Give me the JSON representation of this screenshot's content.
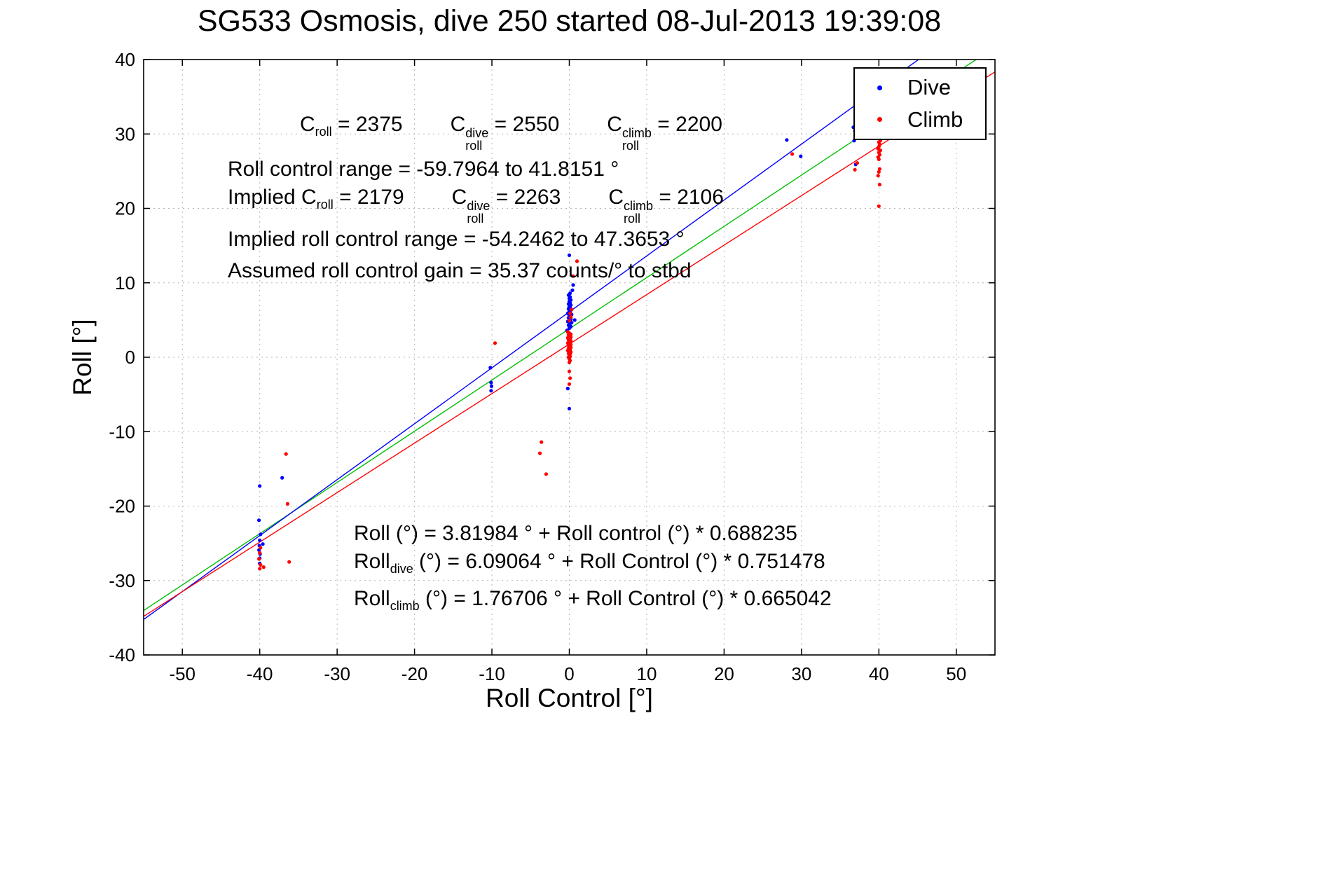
{
  "chart_data": {
    "type": "scatter",
    "title": "SG533 Osmosis, dive 250 started 08-Jul-2013 19:39:08",
    "xlabel": "Roll Control [°]",
    "ylabel": "Roll [°]",
    "xlim": [
      -55,
      55
    ],
    "ylim": [
      -40,
      40
    ],
    "xticks": [
      -50,
      -40,
      -30,
      -20,
      -10,
      0,
      10,
      20,
      30,
      40,
      50
    ],
    "yticks": [
      -40,
      -30,
      -20,
      -10,
      0,
      10,
      20,
      30,
      40
    ],
    "grid": true,
    "legend_position": "top-right",
    "series": [
      {
        "name": "Dive",
        "color": "#0000ff",
        "marker": "dot",
        "points": [
          [
            -40.0,
            -17.3
          ],
          [
            -40.1,
            -21.9
          ],
          [
            -39.9,
            -23.8
          ],
          [
            -40.0,
            -24.6
          ],
          [
            -40.05,
            -25.3
          ],
          [
            -40.1,
            -25.9
          ],
          [
            -39.95,
            -26.45
          ],
          [
            -40.0,
            -27.0
          ],
          [
            -40.0,
            -27.7
          ],
          [
            -39.6,
            -25.1
          ],
          [
            -37.1,
            -16.2
          ],
          [
            -10.2,
            -1.4
          ],
          [
            -10.1,
            -3.4
          ],
          [
            -10.05,
            -3.9
          ],
          [
            -10.1,
            -4.5
          ],
          [
            -0.3,
            3.6
          ],
          [
            0.0,
            3.9
          ],
          [
            0.2,
            4.1
          ],
          [
            -0.1,
            4.3
          ],
          [
            0.1,
            4.5
          ],
          [
            0.3,
            4.65
          ],
          [
            -0.2,
            4.8
          ],
          [
            0.0,
            5.0
          ],
          [
            0.2,
            5.1
          ],
          [
            -0.1,
            5.3
          ],
          [
            0.1,
            5.45
          ],
          [
            0.0,
            5.6
          ],
          [
            0.3,
            5.75
          ],
          [
            -0.2,
            5.9
          ],
          [
            0.1,
            6.05
          ],
          [
            0.0,
            6.2
          ],
          [
            0.2,
            6.35
          ],
          [
            -0.1,
            6.5
          ],
          [
            0.1,
            6.65
          ],
          [
            0.0,
            6.8
          ],
          [
            0.2,
            7.0
          ],
          [
            -0.1,
            7.15
          ],
          [
            0.1,
            7.3
          ],
          [
            0.0,
            7.5
          ],
          [
            0.2,
            7.7
          ],
          [
            0.0,
            7.9
          ],
          [
            0.1,
            8.1
          ],
          [
            -0.1,
            8.35
          ],
          [
            0.1,
            8.6
          ],
          [
            0.4,
            9.0
          ],
          [
            0.5,
            9.7
          ],
          [
            0.7,
            5.0
          ],
          [
            0.0,
            13.7
          ],
          [
            -0.2,
            -4.2
          ],
          [
            0.0,
            -6.9
          ],
          [
            28.1,
            29.2
          ],
          [
            29.9,
            27.0
          ],
          [
            36.7,
            30.9
          ],
          [
            36.9,
            30.4
          ],
          [
            37.0,
            29.9
          ],
          [
            37.1,
            29.5
          ],
          [
            36.8,
            29.1
          ],
          [
            37.2,
            30.6
          ],
          [
            37.0,
            25.9
          ]
        ]
      },
      {
        "name": "Climb",
        "color": "#ff0000",
        "marker": "dot",
        "points": [
          [
            -39.9,
            -25.6
          ],
          [
            -40.0,
            -26.3
          ],
          [
            -40.1,
            -27.1
          ],
          [
            -39.9,
            -27.9
          ],
          [
            -40.0,
            -28.4
          ],
          [
            -39.5,
            -28.2
          ],
          [
            -36.6,
            -13.0
          ],
          [
            -36.4,
            -19.7
          ],
          [
            -36.2,
            -27.5
          ],
          [
            -9.6,
            1.9
          ],
          [
            -3.8,
            -12.9
          ],
          [
            -3.0,
            -15.7
          ],
          [
            -3.6,
            -11.4
          ],
          [
            -0.2,
            3.4
          ],
          [
            0.0,
            3.25
          ],
          [
            0.2,
            3.1
          ],
          [
            -0.1,
            3.0
          ],
          [
            0.1,
            2.9
          ],
          [
            0.0,
            2.8
          ],
          [
            0.2,
            2.7
          ],
          [
            -0.2,
            2.6
          ],
          [
            0.1,
            2.5
          ],
          [
            0.0,
            2.4
          ],
          [
            -0.1,
            2.3
          ],
          [
            0.2,
            2.2
          ],
          [
            0.0,
            2.1
          ],
          [
            0.1,
            2.0
          ],
          [
            -0.2,
            1.9
          ],
          [
            0.0,
            1.8
          ],
          [
            0.2,
            1.7
          ],
          [
            -0.1,
            1.6
          ],
          [
            0.1,
            1.5
          ],
          [
            0.0,
            1.4
          ],
          [
            0.2,
            1.3
          ],
          [
            -0.1,
            1.2
          ],
          [
            0.0,
            1.1
          ],
          [
            0.1,
            1.0
          ],
          [
            -0.2,
            0.9
          ],
          [
            0.0,
            0.8
          ],
          [
            0.2,
            0.7
          ],
          [
            0.0,
            0.6
          ],
          [
            -0.1,
            0.5
          ],
          [
            0.1,
            0.4
          ],
          [
            0.0,
            0.3
          ],
          [
            0.1,
            0.1
          ],
          [
            -0.1,
            0.0
          ],
          [
            0.0,
            -0.2
          ],
          [
            0.1,
            -0.45
          ],
          [
            0.0,
            -0.7
          ],
          [
            0.0,
            4.9
          ],
          [
            0.2,
            5.4
          ],
          [
            0.1,
            5.9
          ],
          [
            0.3,
            6.4
          ],
          [
            0.5,
            10.9
          ],
          [
            1.0,
            12.9
          ],
          [
            0.0,
            -1.9
          ],
          [
            0.1,
            -2.8
          ],
          [
            0.0,
            -3.6
          ],
          [
            28.8,
            27.3
          ],
          [
            36.9,
            25.2
          ],
          [
            37.2,
            26.1
          ],
          [
            40.0,
            20.3
          ],
          [
            40.1,
            23.2
          ],
          [
            39.9,
            24.4
          ],
          [
            40.0,
            24.9
          ],
          [
            40.1,
            25.3
          ],
          [
            40.0,
            26.6
          ],
          [
            39.9,
            26.9
          ],
          [
            40.1,
            27.2
          ],
          [
            40.0,
            27.5
          ],
          [
            40.2,
            27.8
          ],
          [
            39.9,
            28.0
          ],
          [
            40.0,
            28.3
          ],
          [
            40.1,
            28.6
          ],
          [
            40.0,
            28.9
          ],
          [
            40.2,
            29.1
          ]
        ]
      }
    ],
    "fit_lines": [
      {
        "name": "combined",
        "color": "#00bf00",
        "intercept": 3.81984,
        "slope": 0.688235
      },
      {
        "name": "dive",
        "color": "#0000ff",
        "intercept": 6.09064,
        "slope": 0.751478
      },
      {
        "name": "climb",
        "color": "#ff0000",
        "intercept": 1.76706,
        "slope": 0.665042
      }
    ],
    "annotations": {
      "c": "C",
      "roll_sub": "roll",
      "dive_sup": "dive",
      "climb_sup": "climb",
      "c_roll_val": " = 2375",
      "c_dive_val": " = 2550",
      "c_climb_val": " = 2200",
      "roll_control_range": "Roll control range = -59.7964 to 41.8151 °",
      "implied_prefix": "Implied ",
      "implied_c_roll_val": " = 2179",
      "implied_c_dive_val": " = 2263",
      "implied_c_climb_val": " = 2106",
      "implied_range": "Implied roll control range = -54.2462 to 47.3653 °",
      "gain": "Assumed roll control gain = 35.37 counts/° to stbd",
      "eq_all": "Roll (°) = 3.81984 ° + Roll control (°) * 0.688235",
      "eq_base": "Roll",
      "eq_dive_sub": "dive",
      "eq_dive_rest": " (°) = 6.09064 ° + Roll Control (°) * 0.751478",
      "eq_climb_sub": "climb",
      "eq_climb_rest": " (°) = 1.76706 ° + Roll Control (°) * 0.665042"
    }
  }
}
